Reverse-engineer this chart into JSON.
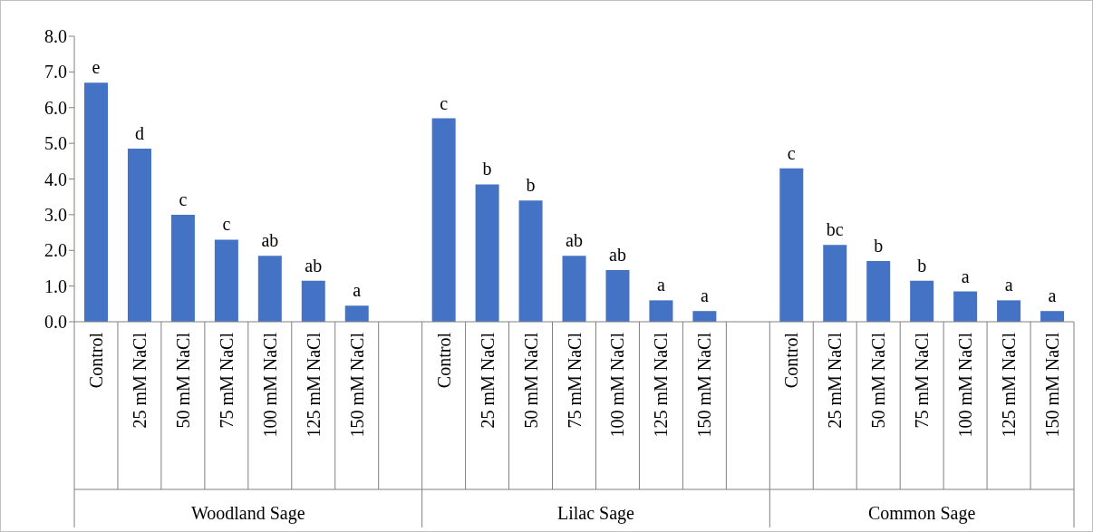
{
  "chart_data": {
    "type": "bar",
    "color": "#4472c4",
    "categories": [
      "Control",
      "25 mM NaCl",
      "50 mM NaCl",
      "75 mM NaCl",
      "100 mM NaCl",
      "125 mM NaCl",
      "150 mM NaCl",
      null,
      "Control",
      "25 mM NaCl",
      "50 mM NaCl",
      "75 mM NaCl",
      "100 mM NaCl",
      "125 mM NaCl",
      "150 mM NaCl",
      null,
      "Control",
      "25 mM NaCl",
      "50 mM NaCl",
      "75 mM NaCl",
      "100 mM NaCl",
      "125 mM NaCl",
      "150 mM NaCl"
    ],
    "values": [
      6.7,
      4.85,
      3.0,
      2.3,
      1.85,
      1.15,
      0.45,
      null,
      5.7,
      3.85,
      3.4,
      1.85,
      1.45,
      0.6,
      0.3,
      null,
      4.3,
      2.15,
      1.7,
      1.15,
      0.85,
      0.6,
      0.3
    ],
    "value_labels": [
      "e",
      "d",
      "c",
      "c",
      "ab",
      "ab",
      "a",
      null,
      "c",
      "b",
      "b",
      "ab",
      "ab",
      "a",
      "a",
      null,
      "c",
      "bc",
      "b",
      "b",
      "a",
      "a",
      "a"
    ],
    "ylim": [
      0,
      8
    ],
    "yticks": [
      {
        "value": 0,
        "label": "0.0"
      },
      {
        "value": 1,
        "label": "1.0"
      },
      {
        "value": 2,
        "label": "2.0"
      },
      {
        "value": 3,
        "label": "3.0"
      },
      {
        "value": 4,
        "label": "4.0"
      },
      {
        "value": 5,
        "label": "5.0"
      },
      {
        "value": 6,
        "label": "6.0"
      },
      {
        "value": 7,
        "label": "7.0"
      },
      {
        "value": 8,
        "label": "8.0"
      }
    ],
    "grid": false,
    "legend": false,
    "annotations": [
      "Woodland Sage",
      "Lilac Sage",
      "Common Sage"
    ]
  }
}
